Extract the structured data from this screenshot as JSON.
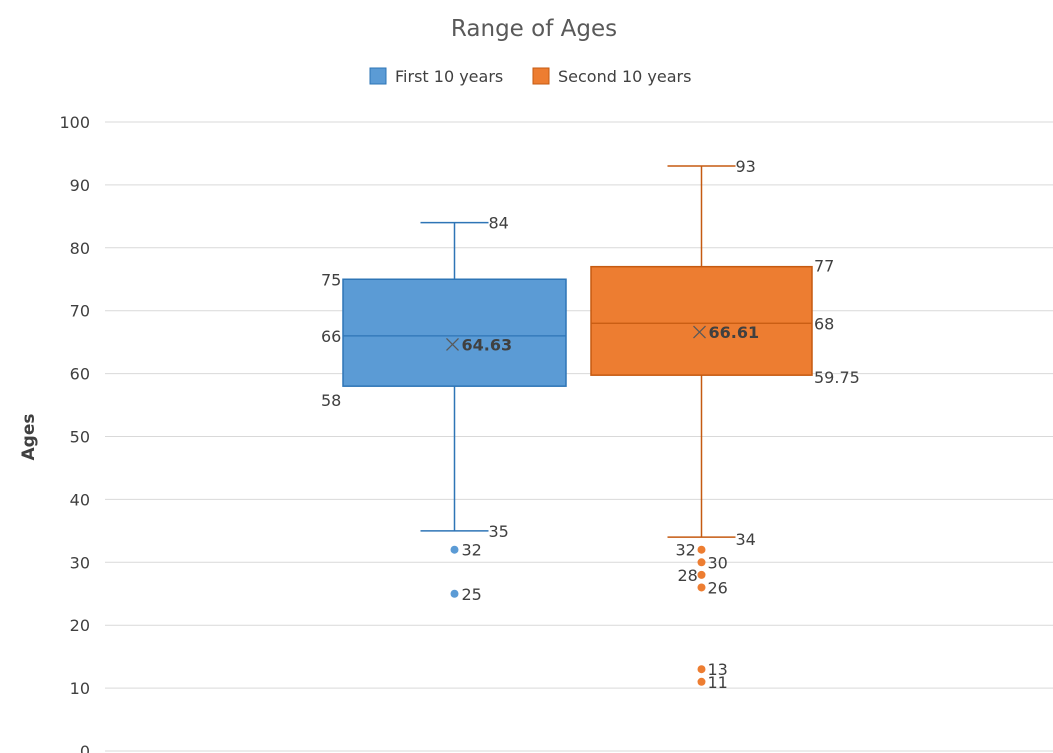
{
  "chart_data": {
    "type": "box",
    "title": "Range of Ages",
    "ylabel": "Ages",
    "xlabel": "",
    "ylim": [
      0,
      100
    ],
    "y_ticks": [
      "0",
      "10",
      "20",
      "30",
      "40",
      "50",
      "60",
      "70",
      "80",
      "90",
      "100"
    ],
    "grid": true,
    "legend_position": "top",
    "series": [
      {
        "name": "First 10 years",
        "color": "#5b9bd5",
        "line_color": "#2e75b6",
        "min": 35,
        "q1": 58,
        "median": 66,
        "q3": 75,
        "max": 84,
        "mean": 64.63,
        "outliers": [
          32,
          25
        ],
        "labels": {
          "max": "84",
          "q3": "75",
          "median": "66",
          "mean": "64.63",
          "q1": "58",
          "min": "35",
          "outliers": [
            "32",
            "25"
          ]
        }
      },
      {
        "name": "Second 10 years",
        "color": "#ed7d31",
        "line_color": "#c55a11",
        "min": 34,
        "q1": 59.75,
        "median": 68,
        "q3": 77,
        "max": 93,
        "mean": 66.61,
        "outliers": [
          32,
          30,
          28,
          26,
          13,
          11
        ],
        "labels": {
          "max": "93",
          "q3": "77",
          "median": "68",
          "mean": "66.61",
          "q1": "59.75",
          "min": "34",
          "outliers": [
            "32",
            "30",
            "28",
            "26",
            "13",
            "11"
          ]
        }
      }
    ]
  }
}
